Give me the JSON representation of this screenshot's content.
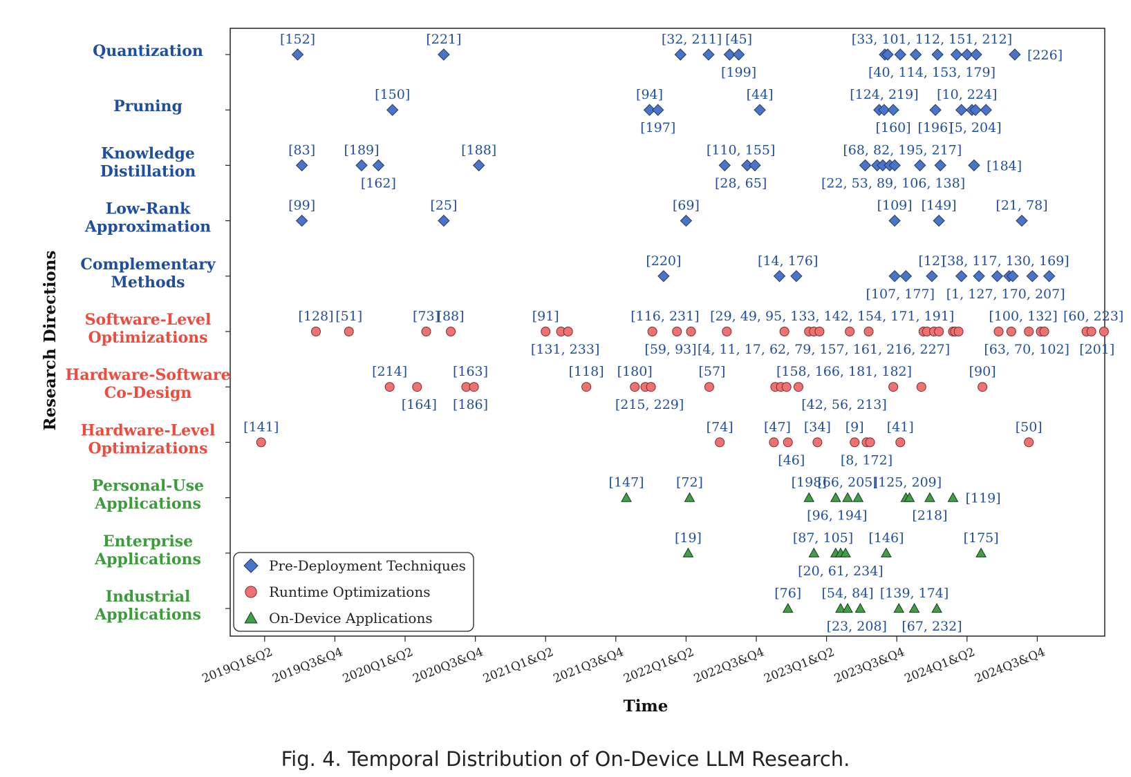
{
  "chart_data": {
    "type": "scatter",
    "title": "",
    "xlabel": "Time",
    "ylabel": "Research Directions",
    "xlim": [
      -0.5,
      11.5
    ],
    "x_ticks": [
      "2019Q1&Q2",
      "2019Q3&Q4",
      "2020Q1&Q2",
      "2020Q3&Q4",
      "2021Q1&Q2",
      "2021Q3&Q4",
      "2022Q1&Q2",
      "2022Q3&Q4",
      "2023Q1&Q2",
      "2023Q3&Q4",
      "2024Q1&Q2",
      "2024Q3&Q4"
    ],
    "legend": {
      "location": "bottom-left",
      "entries": [
        {
          "label": "Pre-Deployment Techniques",
          "marker": "diamond",
          "color": "#4a74c9"
        },
        {
          "label": "Runtime Optimizations",
          "marker": "circle",
          "color": "#ee7272"
        },
        {
          "label": "On-Device Applications",
          "marker": "triangle",
          "color": "#3f9e47"
        }
      ]
    },
    "categories": [
      {
        "name": "Quantization",
        "lines": [
          "Quantization"
        ],
        "group": "pre",
        "color": "#1f4e9e",
        "points": [
          0.47,
          2.55,
          5.92,
          6.32,
          6.62,
          6.75,
          8.83,
          8.87,
          9.05,
          9.27,
          9.58,
          9.85,
          10.0,
          10.13,
          10.68
        ],
        "labels": [
          {
            "text": "[152]",
            "x": 0.47,
            "pos": "above"
          },
          {
            "text": "[221]",
            "x": 2.55,
            "pos": "above"
          },
          {
            "text": "[32, 211]",
            "x": 6.08,
            "pos": "above"
          },
          {
            "text": "[45]",
            "x": 6.75,
            "pos": "above"
          },
          {
            "text": "[199]",
            "x": 6.75,
            "pos": "below"
          },
          {
            "text": "[33, 101, 112, 151, 212]",
            "x": 9.5,
            "pos": "above"
          },
          {
            "text": "[40, 114, 153, 179]",
            "x": 9.5,
            "pos": "below"
          },
          {
            "text": "[226]",
            "x": 10.76,
            "pos": "right"
          }
        ]
      },
      {
        "name": "Pruning",
        "lines": [
          "Pruning"
        ],
        "group": "pre",
        "color": "#1f4e9e",
        "points": [
          1.82,
          5.48,
          5.6,
          7.05,
          8.75,
          8.82,
          8.95,
          9.55,
          9.92,
          10.07,
          10.12,
          10.27
        ],
        "labels": [
          {
            "text": "[150]",
            "x": 1.82,
            "pos": "above"
          },
          {
            "text": "[94]",
            "x": 5.48,
            "pos": "above"
          },
          {
            "text": "[197]",
            "x": 5.6,
            "pos": "below"
          },
          {
            "text": "[44]",
            "x": 7.05,
            "pos": "above"
          },
          {
            "text": "[124, 219]",
            "x": 8.82,
            "pos": "above"
          },
          {
            "text": "[160]",
            "x": 8.95,
            "pos": "below"
          },
          {
            "text": "[10, 224]",
            "x": 10.0,
            "pos": "above"
          },
          {
            "text": "[196]",
            "x": 9.55,
            "pos": "below"
          },
          {
            "text": "[5, 204]",
            "x": 10.12,
            "pos": "below"
          }
        ]
      },
      {
        "name": "Knowledge Distillation",
        "lines": [
          "Knowledge",
          "Distillation"
        ],
        "group": "pre",
        "color": "#1f4e9e",
        "points": [
          0.53,
          1.38,
          1.62,
          3.05,
          6.55,
          6.87,
          6.98,
          8.55,
          8.72,
          8.8,
          8.9,
          8.97,
          9.33,
          9.62,
          10.1
        ],
        "labels": [
          {
            "text": "[83]",
            "x": 0.53,
            "pos": "above"
          },
          {
            "text": "[189]",
            "x": 1.38,
            "pos": "above"
          },
          {
            "text": "[162]",
            "x": 1.62,
            "pos": "below"
          },
          {
            "text": "[188]",
            "x": 3.05,
            "pos": "above"
          },
          {
            "text": "[110, 155]",
            "x": 6.78,
            "pos": "above"
          },
          {
            "text": "[28, 65]",
            "x": 6.78,
            "pos": "below"
          },
          {
            "text": "[68, 82, 195, 217]",
            "x": 9.08,
            "pos": "above"
          },
          {
            "text": "[22, 53, 89, 106, 138]",
            "x": 8.95,
            "pos": "below"
          },
          {
            "text": "[184]",
            "x": 10.18,
            "pos": "right"
          }
        ]
      },
      {
        "name": "Low-Rank Approximation",
        "lines": [
          "Low-Rank",
          "Approximation"
        ],
        "group": "pre",
        "color": "#1f4e9e",
        "points": [
          0.53,
          2.55,
          6.0,
          8.97,
          9.6,
          10.78
        ],
        "labels": [
          {
            "text": "[99]",
            "x": 0.53,
            "pos": "above"
          },
          {
            "text": "[25]",
            "x": 2.55,
            "pos": "above"
          },
          {
            "text": "[69]",
            "x": 6.0,
            "pos": "above"
          },
          {
            "text": "[109]",
            "x": 8.97,
            "pos": "above"
          },
          {
            "text": "[149]",
            "x": 9.6,
            "pos": "above"
          },
          {
            "text": "[21, 78]",
            "x": 10.78,
            "pos": "above"
          }
        ]
      },
      {
        "name": "Complementary Methods",
        "lines": [
          "Complementary",
          "Methods"
        ],
        "group": "pre",
        "color": "#1f4e9e",
        "points": [
          5.68,
          7.33,
          7.57,
          8.97,
          9.13,
          9.5,
          9.92,
          10.17,
          10.43,
          10.6,
          10.65,
          10.93,
          11.17
        ],
        "labels": [
          {
            "text": "[220]",
            "x": 5.68,
            "pos": "above"
          },
          {
            "text": "[14, 176]",
            "x": 7.45,
            "pos": "above"
          },
          {
            "text": "[107, 177]",
            "x": 9.05,
            "pos": "below"
          },
          {
            "text": "[12]",
            "x": 9.5,
            "pos": "above"
          },
          {
            "text": "[38, 117, 130, 169]",
            "x": 10.55,
            "pos": "above"
          },
          {
            "text": "[1, 127, 170, 207]",
            "x": 10.55,
            "pos": "below"
          }
        ]
      },
      {
        "name": "Software-Level Optimizations",
        "lines": [
          "Software-Level",
          "Optimizations"
        ],
        "group": "run",
        "color": "#f04a3c",
        "points": [
          0.73,
          1.2,
          2.3,
          2.65,
          4.0,
          4.22,
          4.32,
          5.52,
          5.87,
          6.07,
          6.58,
          7.4,
          7.75,
          7.82,
          7.9,
          8.33,
          8.6,
          9.38,
          9.43,
          9.53,
          9.6,
          9.8,
          9.83,
          9.88,
          10.45,
          10.63,
          10.88,
          11.05,
          11.1,
          11.7,
          11.77,
          11.95
        ],
        "labels": [
          {
            "text": "[128]",
            "x": 0.73,
            "pos": "above"
          },
          {
            "text": "[51]",
            "x": 1.2,
            "pos": "above"
          },
          {
            "text": "[73]",
            "x": 2.3,
            "pos": "above"
          },
          {
            "text": "[88]",
            "x": 2.65,
            "pos": "above"
          },
          {
            "text": "[91]",
            "x": 4.0,
            "pos": "above"
          },
          {
            "text": "[131, 233]",
            "x": 4.28,
            "pos": "below"
          },
          {
            "text": "[116, 231]",
            "x": 5.7,
            "pos": "above"
          },
          {
            "text": "[59, 93]",
            "x": 5.78,
            "pos": "below"
          },
          {
            "text": "[29, 49, 95, 133, 142, 154, 171, 191]",
            "x": 8.08,
            "pos": "above"
          },
          {
            "text": "[4, 11, 17, 62, 79, 157, 161, 216, 227]",
            "x": 7.96,
            "pos": "below"
          },
          {
            "text": "[100, 132]",
            "x": 10.8,
            "pos": "above"
          },
          {
            "text": "[63, 70, 102]",
            "x": 10.85,
            "pos": "below"
          },
          {
            "text": "[60, 223]",
            "x": 11.8,
            "pos": "above"
          },
          {
            "text": "[201]",
            "x": 11.85,
            "pos": "below"
          }
        ]
      },
      {
        "name": "Hardware-Software Co-Design",
        "lines": [
          "Hardware-Software",
          "Co-Design"
        ],
        "group": "run",
        "color": "#f04a3c",
        "points": [
          1.78,
          2.17,
          2.87,
          2.98,
          4.58,
          5.27,
          5.42,
          5.5,
          6.33,
          7.27,
          7.35,
          7.43,
          7.6,
          8.95,
          9.35,
          10.22
        ],
        "labels": [
          {
            "text": "[214]",
            "x": 1.78,
            "pos": "above"
          },
          {
            "text": "[164]",
            "x": 2.2,
            "pos": "below"
          },
          {
            "text": "[163]",
            "x": 2.93,
            "pos": "above"
          },
          {
            "text": "[186]",
            "x": 2.93,
            "pos": "below"
          },
          {
            "text": "[118]",
            "x": 4.58,
            "pos": "above"
          },
          {
            "text": "[180]",
            "x": 5.27,
            "pos": "above"
          },
          {
            "text": "[215, 229]",
            "x": 5.48,
            "pos": "below"
          },
          {
            "text": "[57]",
            "x": 6.37,
            "pos": "above"
          },
          {
            "text": "[158, 166, 181, 182]",
            "x": 8.25,
            "pos": "above"
          },
          {
            "text": "[42, 56, 213]",
            "x": 8.25,
            "pos": "below"
          },
          {
            "text": "[90]",
            "x": 10.22,
            "pos": "above"
          }
        ]
      },
      {
        "name": "Hardware-Level Optimizations",
        "lines": [
          "Hardware-Level",
          "Optimizations"
        ],
        "group": "run",
        "color": "#f04a3c",
        "points": [
          -0.05,
          6.48,
          7.25,
          7.45,
          7.87,
          8.4,
          8.57,
          8.62,
          9.05,
          10.88
        ],
        "labels": [
          {
            "text": "[141]",
            "x": -0.05,
            "pos": "above"
          },
          {
            "text": "[74]",
            "x": 6.48,
            "pos": "above"
          },
          {
            "text": "[47]",
            "x": 7.3,
            "pos": "above"
          },
          {
            "text": "[46]",
            "x": 7.5,
            "pos": "below"
          },
          {
            "text": "[34]",
            "x": 7.87,
            "pos": "above"
          },
          {
            "text": "[9]",
            "x": 8.4,
            "pos": "above"
          },
          {
            "text": "[8, 172]",
            "x": 8.57,
            "pos": "below"
          },
          {
            "text": "[41]",
            "x": 9.05,
            "pos": "above"
          },
          {
            "text": "[50]",
            "x": 10.88,
            "pos": "above"
          }
        ]
      },
      {
        "name": "Personal-Use Applications",
        "lines": [
          "Personal-Use",
          "Applications"
        ],
        "group": "app",
        "color": "#3c9c3c",
        "points": [
          5.15,
          6.05,
          7.75,
          8.13,
          8.3,
          8.45,
          9.13,
          9.18,
          9.47,
          9.8
        ],
        "labels": [
          {
            "text": "[147]",
            "x": 5.15,
            "pos": "above"
          },
          {
            "text": "[72]",
            "x": 6.05,
            "pos": "above"
          },
          {
            "text": "[198]",
            "x": 7.75,
            "pos": "above"
          },
          {
            "text": "[66, 205]",
            "x": 8.3,
            "pos": "above"
          },
          {
            "text": "[96, 194]",
            "x": 8.15,
            "pos": "below"
          },
          {
            "text": "[125, 209]",
            "x": 9.15,
            "pos": "above"
          },
          {
            "text": "[218]",
            "x": 9.47,
            "pos": "below"
          },
          {
            "text": "[119]",
            "x": 9.88,
            "pos": "right"
          }
        ]
      },
      {
        "name": "Enterprise Applications",
        "lines": [
          "Enterprise",
          "Applications"
        ],
        "group": "app",
        "color": "#3c9c3c",
        "points": [
          6.03,
          7.82,
          8.13,
          8.2,
          8.27,
          8.85,
          10.2
        ],
        "labels": [
          {
            "text": "[19]",
            "x": 6.03,
            "pos": "above"
          },
          {
            "text": "[87, 105]",
            "x": 7.95,
            "pos": "above"
          },
          {
            "text": "[20, 61, 234]",
            "x": 8.2,
            "pos": "below"
          },
          {
            "text": "[146]",
            "x": 8.85,
            "pos": "above"
          },
          {
            "text": "[175]",
            "x": 10.2,
            "pos": "above"
          }
        ]
      },
      {
        "name": "Industrial Applications",
        "lines": [
          "Industrial",
          "Applications"
        ],
        "group": "app",
        "color": "#3c9c3c",
        "points": [
          7.45,
          8.2,
          8.3,
          8.48,
          9.03,
          9.25,
          9.57
        ],
        "labels": [
          {
            "text": "[76]",
            "x": 7.45,
            "pos": "above"
          },
          {
            "text": "[54, 84]",
            "x": 8.3,
            "pos": "above"
          },
          {
            "text": "[23, 208]",
            "x": 8.43,
            "pos": "below"
          },
          {
            "text": "[139, 174]",
            "x": 9.25,
            "pos": "above"
          },
          {
            "text": "[67, 232]",
            "x": 9.5,
            "pos": "below"
          }
        ]
      }
    ]
  },
  "caption": "Fig. 4.  Temporal Distribution of On-Device LLM Research."
}
